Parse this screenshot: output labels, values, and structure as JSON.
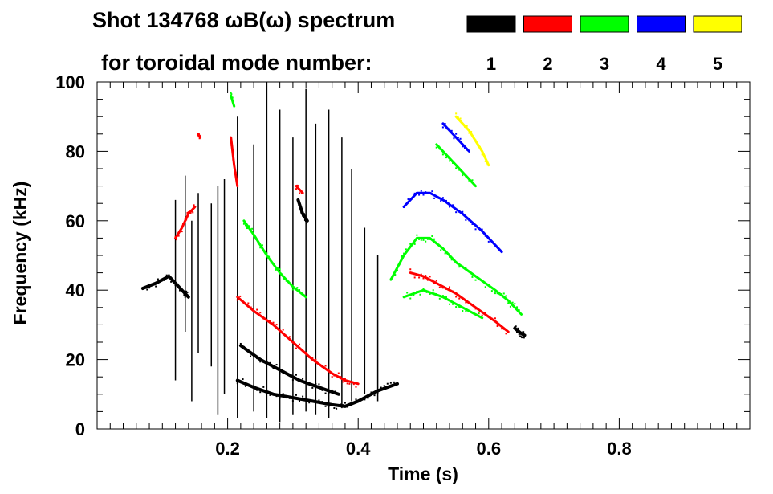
{
  "chart_data": {
    "type": "scatter",
    "title_line1": "Shot 134768 ωB(ω) spectrum",
    "title_line2": "for toroidal mode number:",
    "xlabel": "Time (s)",
    "ylabel": "Frequency (kHz)",
    "xlim": [
      0.0,
      1.0
    ],
    "ylim": [
      0,
      100
    ],
    "xticks": [
      0.2,
      0.4,
      0.6,
      0.8
    ],
    "xtick_labels": [
      "0.2",
      "0.4",
      "0.6",
      "0.8"
    ],
    "yticks": [
      0,
      20,
      40,
      60,
      80,
      100
    ],
    "ytick_labels": [
      "0",
      "20",
      "40",
      "60",
      "80",
      "100"
    ],
    "legend": [
      {
        "label": "1",
        "color": "#000000"
      },
      {
        "label": "2",
        "color": "#ff0000"
      },
      {
        "label": "3",
        "color": "#00ff00"
      },
      {
        "label": "4",
        "color": "#0000ff"
      },
      {
        "label": "5",
        "color": "#ffff00"
      }
    ],
    "series": [
      {
        "name": "n=1",
        "color": "#000000",
        "curves": [
          {
            "t": [
              0.07,
              0.09,
              0.11,
              0.13,
              0.14
            ],
            "f": [
              40.5,
              42,
              44,
              40,
              38
            ]
          },
          {
            "t": [
              0.215,
              0.24,
              0.27,
              0.3,
              0.33,
              0.36,
              0.38,
              0.4,
              0.43,
              0.46
            ],
            "f": [
              14,
              12,
              10,
              9,
              8,
              7,
              6.5,
              8,
              11,
              13
            ]
          },
          {
            "t": [
              0.22,
              0.25,
              0.28,
              0.31,
              0.34,
              0.37
            ],
            "f": [
              24,
              20,
              17,
              14,
              12,
              10
            ]
          },
          {
            "t": [
              0.64,
              0.65,
              0.655
            ],
            "f": [
              29,
              27.5,
              27
            ]
          },
          {
            "t": [
              0.308,
              0.315,
              0.322
            ],
            "f": [
              66,
              62,
              60
            ]
          }
        ],
        "bursts": [
          {
            "t": 0.12,
            "f0": 14,
            "f1": 66
          },
          {
            "t": 0.135,
            "f0": 28,
            "f1": 73
          },
          {
            "t": 0.145,
            "f0": 8,
            "f1": 60
          },
          {
            "t": 0.155,
            "f0": 22,
            "f1": 68
          },
          {
            "t": 0.175,
            "f0": 18,
            "f1": 65
          },
          {
            "t": 0.185,
            "f0": 4,
            "f1": 70
          },
          {
            "t": 0.195,
            "f0": 10,
            "f1": 72
          },
          {
            "t": 0.215,
            "f0": 3,
            "f1": 90
          },
          {
            "t": 0.24,
            "f0": 5,
            "f1": 82
          },
          {
            "t": 0.26,
            "f0": 3,
            "f1": 100
          },
          {
            "t": 0.28,
            "f0": 2,
            "f1": 92
          },
          {
            "t": 0.3,
            "f0": 4,
            "f1": 84
          },
          {
            "t": 0.32,
            "f0": 5,
            "f1": 98
          },
          {
            "t": 0.335,
            "f0": 4,
            "f1": 88
          },
          {
            "t": 0.355,
            "f0": 3,
            "f1": 92
          },
          {
            "t": 0.375,
            "f0": 6,
            "f1": 84
          },
          {
            "t": 0.39,
            "f0": 8,
            "f1": 75
          },
          {
            "t": 0.41,
            "f0": 10,
            "f1": 58
          },
          {
            "t": 0.43,
            "f0": 8,
            "f1": 50
          }
        ]
      },
      {
        "name": "n=2",
        "color": "#ff0000",
        "curves": [
          {
            "t": [
              0.12,
              0.13,
              0.14,
              0.15
            ],
            "f": [
              55,
              58,
              62,
              64
            ]
          },
          {
            "t": [
              0.205,
              0.21,
              0.215
            ],
            "f": [
              84,
              76,
              70
            ]
          },
          {
            "t": [
              0.215,
              0.24,
              0.27,
              0.3,
              0.33,
              0.36,
              0.38,
              0.4
            ],
            "f": [
              38,
              34,
              30,
              25,
              20,
              16,
              14,
              13
            ]
          },
          {
            "t": [
              0.48,
              0.5,
              0.52,
              0.55,
              0.58,
              0.61,
              0.63
            ],
            "f": [
              45,
              44,
              42,
              39,
              35,
              31,
              28
            ]
          },
          {
            "t": [
              0.305,
              0.315
            ],
            "f": [
              70,
              68
            ]
          },
          {
            "t": [
              0.155,
              0.158
            ],
            "f": [
              85,
              84
            ]
          }
        ]
      },
      {
        "name": "n=3",
        "color": "#00ff00",
        "curves": [
          {
            "t": [
              0.205,
              0.21
            ],
            "f": [
              96,
              93
            ]
          },
          {
            "t": [
              0.225,
              0.24,
              0.26,
              0.28,
              0.3,
              0.32
            ],
            "f": [
              60,
              56,
              50,
              45,
              41,
              38
            ]
          },
          {
            "t": [
              0.45,
              0.47,
              0.49,
              0.51,
              0.53,
              0.55,
              0.58,
              0.61,
              0.63,
              0.65
            ],
            "f": [
              43,
              50,
              55,
              55,
              52,
              48,
              44,
              40,
              37,
              33
            ]
          },
          {
            "t": [
              0.47,
              0.5,
              0.53,
              0.56,
              0.59
            ],
            "f": [
              38,
              40,
              38,
              35,
              32
            ]
          },
          {
            "t": [
              0.52,
              0.55,
              0.58
            ],
            "f": [
              82,
              76,
              70
            ]
          }
        ]
      },
      {
        "name": "n=4",
        "color": "#0000ff",
        "curves": [
          {
            "t": [
              0.47,
              0.49,
              0.51,
              0.53,
              0.56,
              0.59,
              0.62
            ],
            "f": [
              64,
              68,
              68,
              66,
              62,
              57,
              51
            ]
          },
          {
            "t": [
              0.53,
              0.55,
              0.57
            ],
            "f": [
              88,
              84,
              80
            ]
          }
        ]
      },
      {
        "name": "n=5",
        "color": "#ffff00",
        "curves": [
          {
            "t": [
              0.55,
              0.57,
              0.59,
              0.6
            ],
            "f": [
              90,
              86,
              80,
              76
            ]
          }
        ]
      }
    ]
  }
}
